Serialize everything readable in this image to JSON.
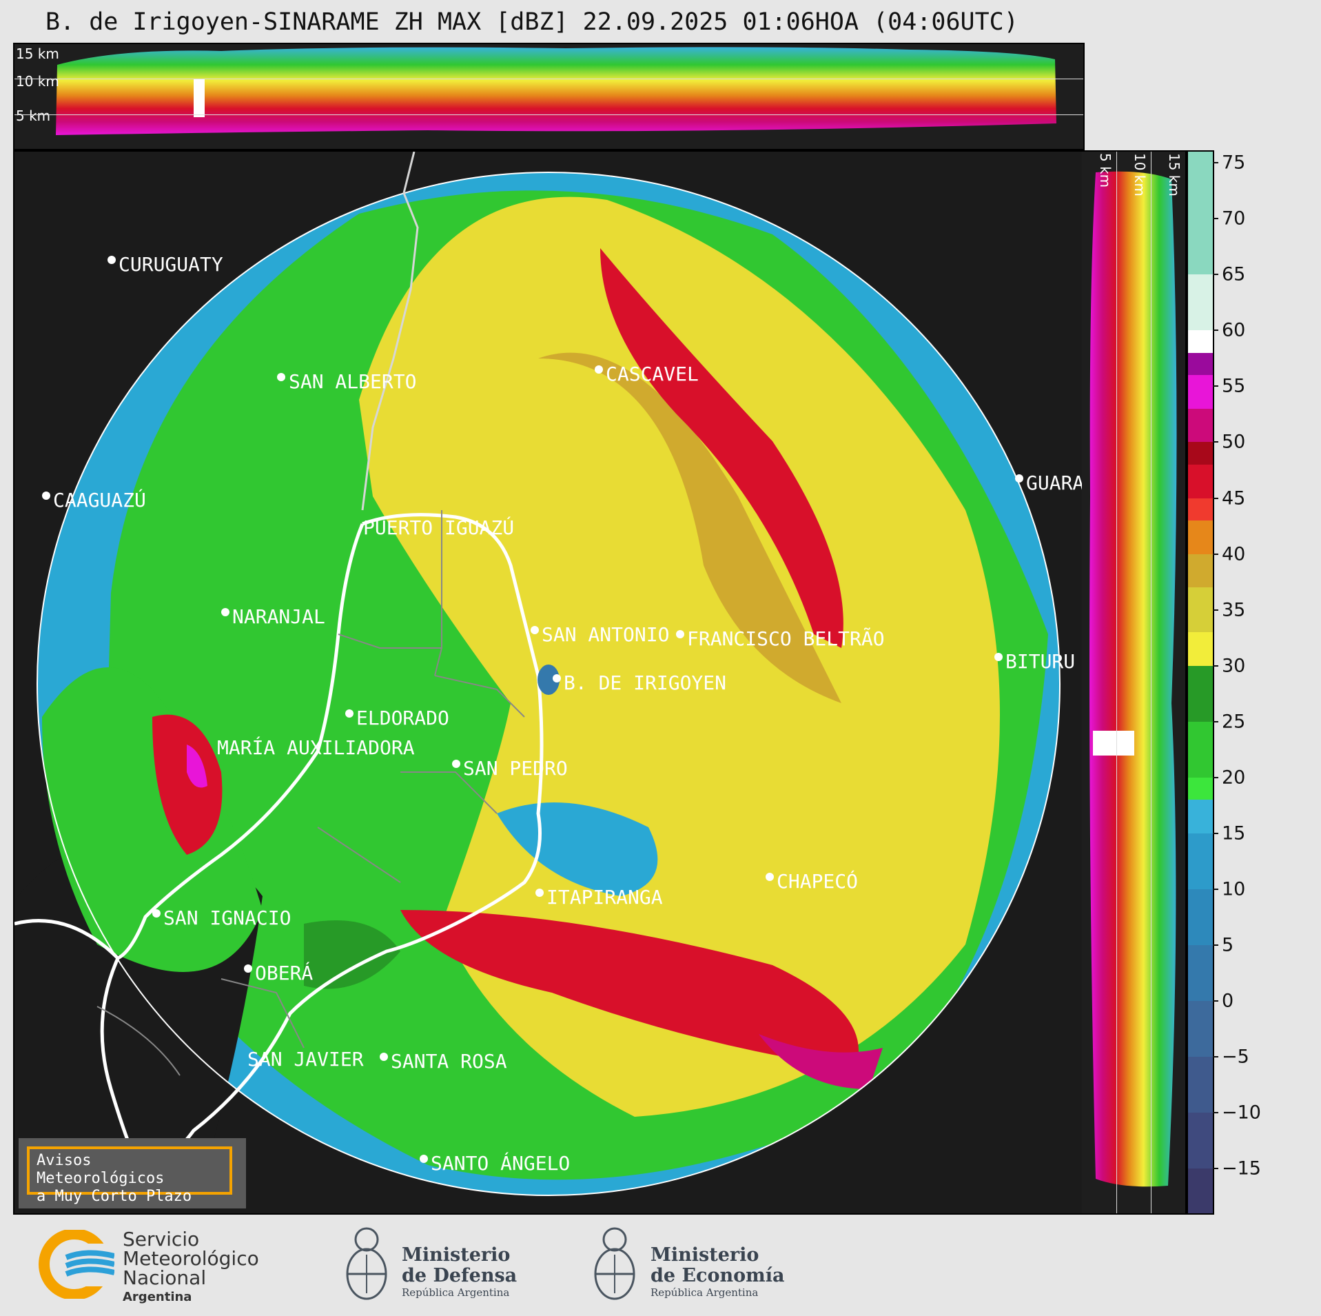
{
  "title": "B. de Irigoyen-SINARAME ZH MAX [dBZ] 22.09.2025 01:06HOA (04:06UTC)",
  "height_panel": {
    "labels": [
      "15 km",
      "10 km",
      "5 km"
    ]
  },
  "vertical_panel": {
    "labels": [
      "5 km",
      "10 km",
      "15 km"
    ]
  },
  "colorbar": {
    "ticks": [
      75,
      70,
      65,
      60,
      55,
      50,
      45,
      40,
      35,
      30,
      25,
      20,
      15,
      10,
      5,
      0,
      "−5",
      "−10",
      "−15"
    ],
    "range": [
      -19,
      76
    ],
    "stops": [
      {
        "from": -19,
        "to": -15,
        "color": "#3b3a6a"
      },
      {
        "from": -15,
        "to": -10,
        "color": "#3f4a7e"
      },
      {
        "from": -10,
        "to": -5,
        "color": "#3f5a8d"
      },
      {
        "from": -5,
        "to": 0,
        "color": "#3d6a9c"
      },
      {
        "from": 0,
        "to": 5,
        "color": "#3479ac"
      },
      {
        "from": 5,
        "to": 10,
        "color": "#2d89bb"
      },
      {
        "from": 10,
        "to": 15,
        "color": "#2d9bca"
      },
      {
        "from": 15,
        "to": 18,
        "color": "#38b2da"
      },
      {
        "from": 18,
        "to": 20,
        "color": "#3ce63c"
      },
      {
        "from": 20,
        "to": 25,
        "color": "#31c731"
      },
      {
        "from": 25,
        "to": 30,
        "color": "#279a27"
      },
      {
        "from": 30,
        "to": 33,
        "color": "#f2ed3a"
      },
      {
        "from": 33,
        "to": 37,
        "color": "#d6cf38"
      },
      {
        "from": 37,
        "to": 40,
        "color": "#d0aa2e"
      },
      {
        "from": 40,
        "to": 43,
        "color": "#e6871a"
      },
      {
        "from": 43,
        "to": 45,
        "color": "#f03a2e"
      },
      {
        "from": 45,
        "to": 48,
        "color": "#d8102a"
      },
      {
        "from": 48,
        "to": 50,
        "color": "#a8081a"
      },
      {
        "from": 50,
        "to": 53,
        "color": "#cc0a7a"
      },
      {
        "from": 53,
        "to": 56,
        "color": "#e815d8"
      },
      {
        "from": 56,
        "to": 58,
        "color": "#9a0a9c"
      },
      {
        "from": 58,
        "to": 60,
        "color": "#ffffff"
      },
      {
        "from": 60,
        "to": 65,
        "color": "#d8f2e6"
      },
      {
        "from": 65,
        "to": 76,
        "color": "#8ad8bf"
      }
    ]
  },
  "cities": [
    {
      "name": "CURUGUATY",
      "dot": [
        141,
        157
      ],
      "label": [
        151,
        150
      ]
    },
    {
      "name": "SAN ALBERTO",
      "dot": [
        387,
        327
      ],
      "label": [
        398,
        320
      ]
    },
    {
      "name": "CASCAVEL",
      "dot": [
        848,
        316
      ],
      "label": [
        858,
        309
      ]
    },
    {
      "name": "CAAGUAZÚ",
      "dot": [
        46,
        499
      ],
      "label": [
        56,
        492
      ]
    },
    {
      "name": "GUARA",
      "dot": [
        1458,
        474
      ],
      "label": [
        1468,
        467
      ]
    },
    {
      "name": "PUERTO IGUAZÚ",
      "dot": null,
      "label": [
        506,
        532
      ]
    },
    {
      "name": "NARANJAL",
      "dot": [
        306,
        668
      ],
      "label": [
        316,
        661
      ]
    },
    {
      "name": "SAN ANTONIO",
      "dot": [
        755,
        694
      ],
      "label": [
        765,
        687
      ]
    },
    {
      "name": "FRANCISCO BELTRÃO",
      "dot": [
        966,
        700
      ],
      "label": [
        976,
        693
      ]
    },
    {
      "name": "BITURU",
      "dot": [
        1428,
        733
      ],
      "label": [
        1438,
        726
      ]
    },
    {
      "name": "B. DE IRIGOYEN",
      "dot": [
        787,
        764
      ],
      "label": [
        797,
        757
      ]
    },
    {
      "name": "ELDORADO",
      "dot": [
        486,
        815
      ],
      "label": [
        496,
        808
      ]
    },
    {
      "name": "MARÍA AUXILIADORA",
      "dot": null,
      "label": [
        294,
        851
      ]
    },
    {
      "name": "SAN PEDRO",
      "dot": [
        641,
        888
      ],
      "label": [
        651,
        881
      ]
    },
    {
      "name": "CHAPECÓ",
      "dot": [
        1096,
        1052
      ],
      "label": [
        1106,
        1045
      ]
    },
    {
      "name": "ITAPIRANGA",
      "dot": [
        762,
        1075
      ],
      "label": [
        772,
        1068
      ]
    },
    {
      "name": "SAN IGNACIO",
      "dot": [
        206,
        1105
      ],
      "label": [
        216,
        1098
      ]
    },
    {
      "name": "OBERÁ",
      "dot": [
        339,
        1185
      ],
      "label": [
        349,
        1178
      ]
    },
    {
      "name": "SAN JAVIER",
      "dot": null,
      "label": [
        338,
        1303
      ]
    },
    {
      "name": "SANTA ROSA",
      "dot": [
        536,
        1313
      ],
      "label": [
        546,
        1306
      ]
    },
    {
      "name": "SANTO ÁNGELO",
      "dot": [
        594,
        1461
      ],
      "label": [
        604,
        1454
      ]
    }
  ],
  "warning_box": {
    "line1": "Avisos Meteorológicos",
    "line2": "a Muy Corto Plazo"
  },
  "footer": {
    "smn": {
      "line1": "Servicio",
      "line2": "Meteorológico",
      "line3": "Nacional",
      "line4": "Argentina"
    },
    "defensa": {
      "line1": "Ministerio",
      "line2": "de Defensa",
      "sub": "República Argentina"
    },
    "economia": {
      "line1": "Ministerio",
      "line2": "de Economía",
      "sub": "República Argentina"
    }
  }
}
